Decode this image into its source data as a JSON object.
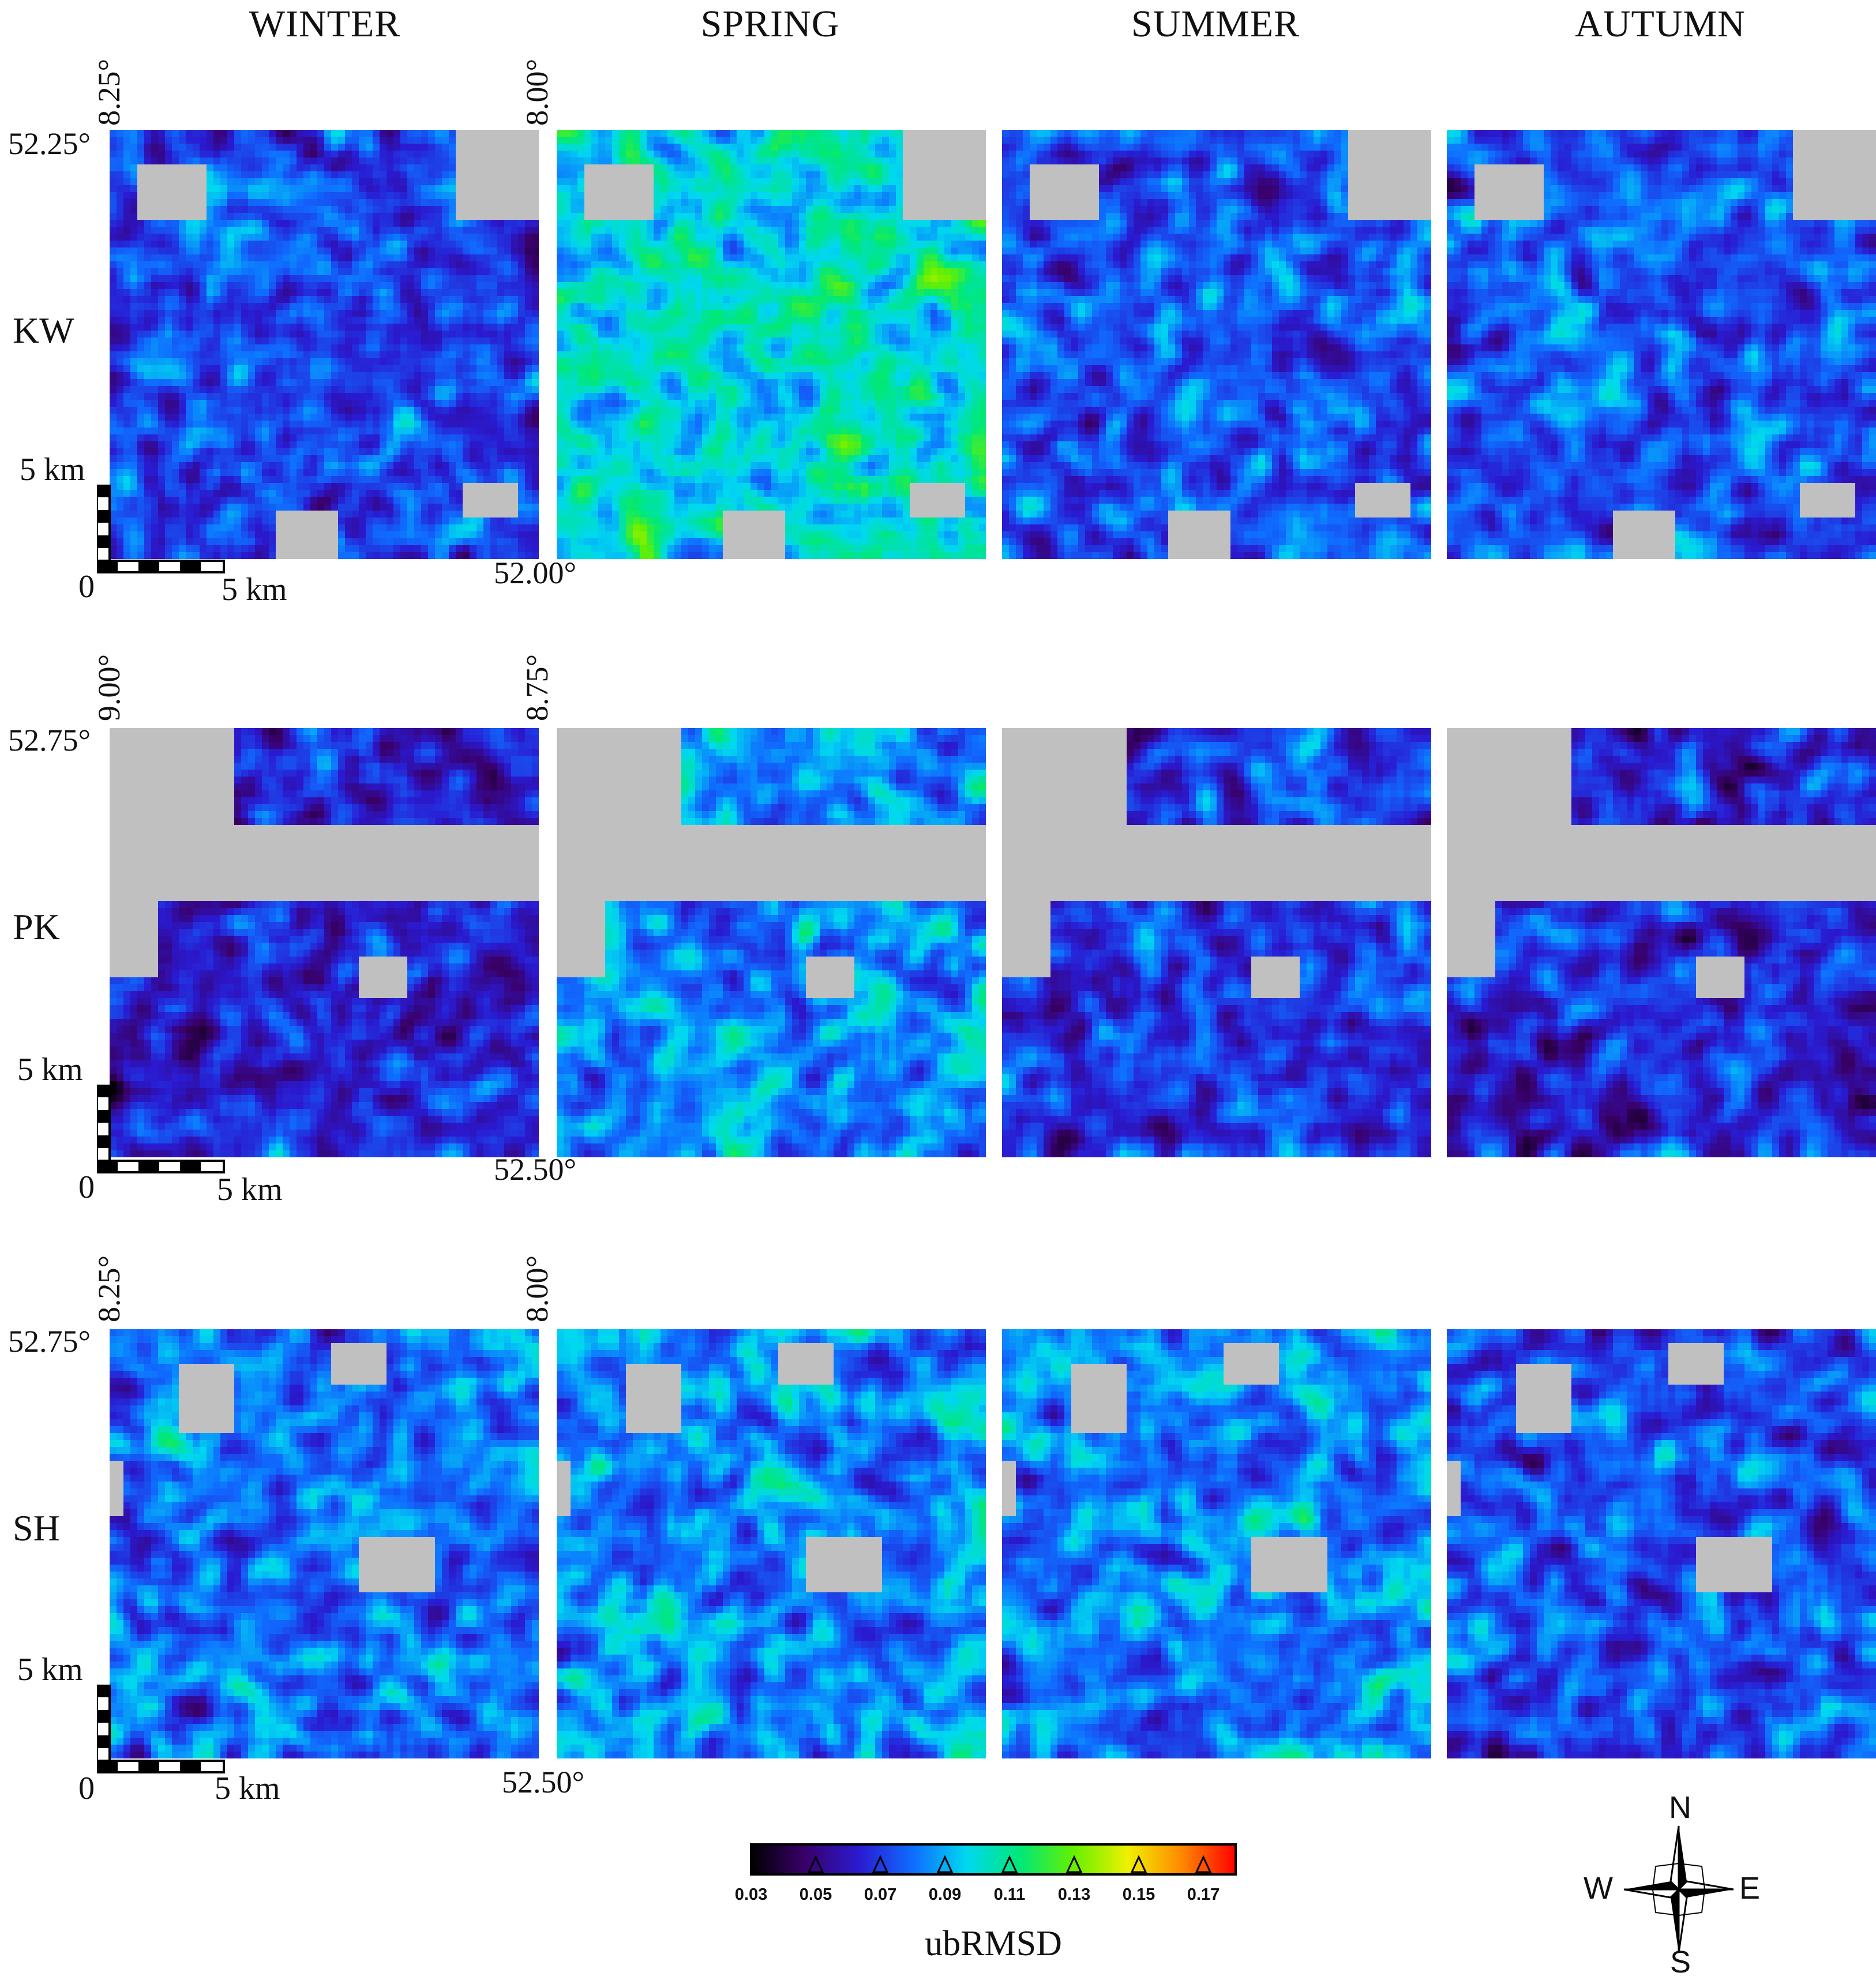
{
  "seasons": [
    "WINTER",
    "SPRING",
    "SUMMER",
    "AUTUMN"
  ],
  "rows": [
    {
      "site": "KW",
      "lon_left": "8.25°",
      "lon_right": "8.00°",
      "lat_top": "52.25°",
      "lat_bottom": "52.00°",
      "scale_vertical": "5 km",
      "scale_origin": "0",
      "scale_horizontal": "5 km"
    },
    {
      "site": "PK",
      "lon_left": "9.00°",
      "lon_right": "8.75°",
      "lat_top": "52.75°",
      "lat_bottom": "52.50°",
      "scale_vertical": "5 km",
      "scale_origin": "0",
      "scale_horizontal": "5 km"
    },
    {
      "site": "SH",
      "lon_left": "8.25°",
      "lon_right": "8.00°",
      "lat_top": "52.75°",
      "lat_bottom": "52.50°",
      "scale_vertical": "5 km",
      "scale_origin": "0",
      "scale_horizontal": "5 km"
    }
  ],
  "colorbar": {
    "title": "ubRMSD",
    "ticks": [
      "0.03",
      "0.05",
      "0.07",
      "0.09",
      "0.11",
      "0.13",
      "0.15",
      "0.17"
    ],
    "tick_values": [
      0.03,
      0.05,
      0.07,
      0.09,
      0.11,
      0.13,
      0.15,
      0.17
    ],
    "range": [
      0.03,
      0.18
    ],
    "colors": [
      "#000000",
      "#3a006a",
      "#2a1ad0",
      "#0f6cff",
      "#00d8f0",
      "#00e878",
      "#66f000",
      "#f0f000",
      "#ff8800",
      "#ff0000"
    ],
    "nodata_color": "#c0c0c0"
  },
  "compass": {
    "n": "N",
    "s": "S",
    "e": "E",
    "w": "W"
  },
  "map_data": {
    "type": "raster-grid",
    "variable": "ubRMSD",
    "sites": [
      "KW",
      "PK",
      "SH"
    ],
    "seasons": [
      "WINTER",
      "SPRING",
      "SUMMER",
      "AUTUMN"
    ],
    "typical_level": [
      [
        0.072,
        0.1,
        0.074,
        0.076
      ],
      [
        0.064,
        0.085,
        0.07,
        0.064
      ],
      [
        0.08,
        0.084,
        0.083,
        0.074
      ]
    ]
  }
}
